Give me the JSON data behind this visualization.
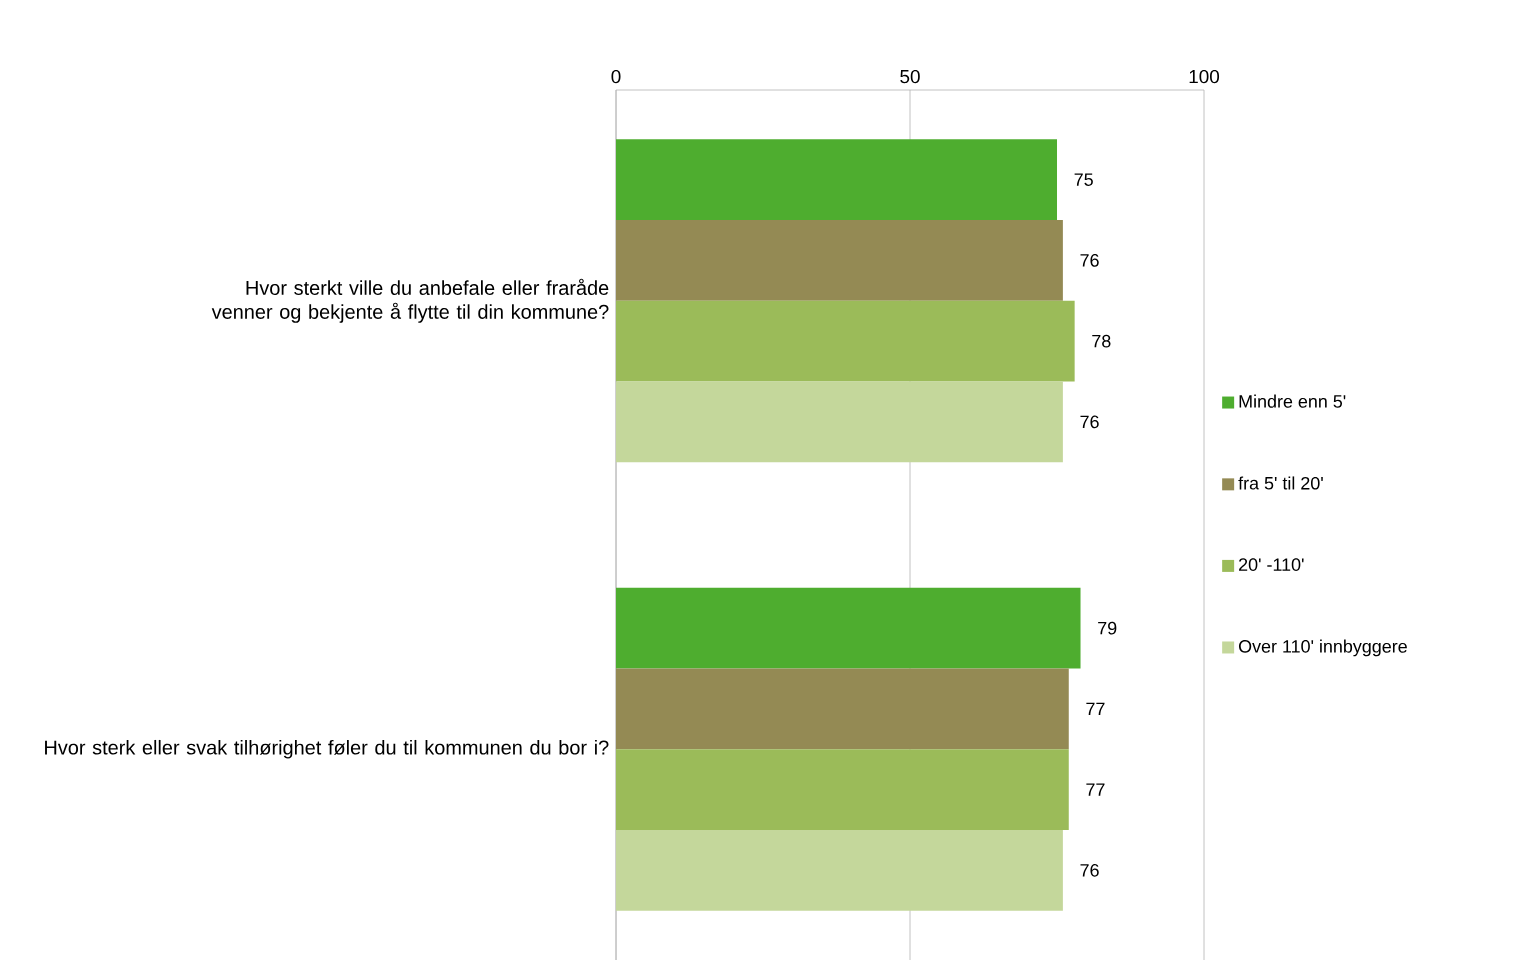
{
  "chart_data": {
    "type": "bar",
    "orientation": "horizontal",
    "categories": [
      "Hvor sterkt ville du anbefale eller fraråde venner og bekjente å flytte til din kommune?",
      "Hvor sterk eller svak tilhørighet føler du til kommunen du bor i?"
    ],
    "series": [
      {
        "name": "Mindre enn 5'",
        "color": "#4ead2f",
        "values": [
          75,
          79
        ]
      },
      {
        "name": "fra 5' til 20'",
        "color": "#948a54",
        "values": [
          76,
          77
        ]
      },
      {
        "name": "20' -110'",
        "color": "#9bbb59",
        "values": [
          78,
          77
        ]
      },
      {
        "name": "Over 110' innbyggere",
        "color": "#c4d79b",
        "values": [
          76,
          76
        ]
      }
    ],
    "xlim": [
      0,
      100
    ],
    "xticks": [
      0,
      50,
      100
    ],
    "grid": "x",
    "legend": "right",
    "data_labels": true
  }
}
